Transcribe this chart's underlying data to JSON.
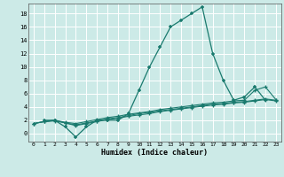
{
  "xlabel": "Humidex (Indice chaleur)",
  "bg_color": "#cceae7",
  "grid_color": "#ffffff",
  "line_color": "#1a7a6e",
  "xlim": [
    -0.5,
    23.5
  ],
  "ylim": [
    -1.2,
    19.5
  ],
  "xticks": [
    0,
    1,
    2,
    3,
    4,
    5,
    6,
    7,
    8,
    9,
    10,
    11,
    12,
    13,
    14,
    15,
    16,
    17,
    18,
    19,
    20,
    21,
    22,
    23
  ],
  "yticks": [
    0,
    2,
    4,
    6,
    8,
    10,
    12,
    14,
    16,
    18
  ],
  "line1_x": [
    1,
    2,
    3,
    4,
    5,
    6,
    7,
    8,
    9,
    10,
    11,
    12,
    13,
    14,
    15,
    16,
    17,
    18,
    19,
    20,
    21,
    22
  ],
  "line1_y": [
    2.0,
    2.0,
    1.0,
    -0.5,
    1.0,
    2.0,
    2.0,
    2.0,
    3.0,
    6.5,
    10.0,
    13.0,
    16.0,
    17.0,
    18.0,
    19.0,
    12.0,
    8.0,
    5.0,
    5.5,
    7.0,
    5.0
  ],
  "line2_x": [
    0,
    1,
    2,
    3,
    4,
    5,
    6,
    7,
    8,
    9,
    10,
    11,
    12,
    13,
    14,
    15,
    16,
    17,
    18,
    19,
    20,
    21,
    22,
    23
  ],
  "line2_y": [
    1.5,
    1.8,
    2.0,
    1.7,
    1.5,
    1.8,
    2.1,
    2.4,
    2.6,
    2.9,
    3.1,
    3.3,
    3.6,
    3.8,
    4.0,
    4.2,
    4.4,
    4.6,
    4.7,
    4.9,
    5.0,
    6.5,
    7.0,
    5.1
  ],
  "line3_x": [
    0,
    1,
    2,
    3,
    4,
    5,
    6,
    7,
    8,
    9,
    10,
    11,
    12,
    13,
    14,
    15,
    16,
    17,
    18,
    19,
    20,
    21,
    22,
    23
  ],
  "line3_y": [
    1.5,
    1.8,
    2.0,
    1.6,
    1.3,
    1.6,
    1.9,
    2.2,
    2.4,
    2.7,
    3.0,
    3.2,
    3.4,
    3.6,
    3.8,
    4.0,
    4.2,
    4.4,
    4.5,
    4.7,
    4.8,
    5.0,
    5.2,
    5.0
  ],
  "line4_x": [
    0,
    1,
    2,
    3,
    4,
    5,
    6,
    7,
    8,
    9,
    10,
    11,
    12,
    13,
    14,
    15,
    16,
    17,
    18,
    19,
    20,
    21,
    22,
    23
  ],
  "line4_y": [
    1.5,
    1.8,
    1.9,
    1.6,
    1.2,
    1.5,
    1.8,
    2.1,
    2.3,
    2.6,
    2.8,
    3.0,
    3.3,
    3.5,
    3.7,
    3.9,
    4.1,
    4.3,
    4.4,
    4.6,
    4.7,
    4.9,
    5.1,
    4.9
  ]
}
